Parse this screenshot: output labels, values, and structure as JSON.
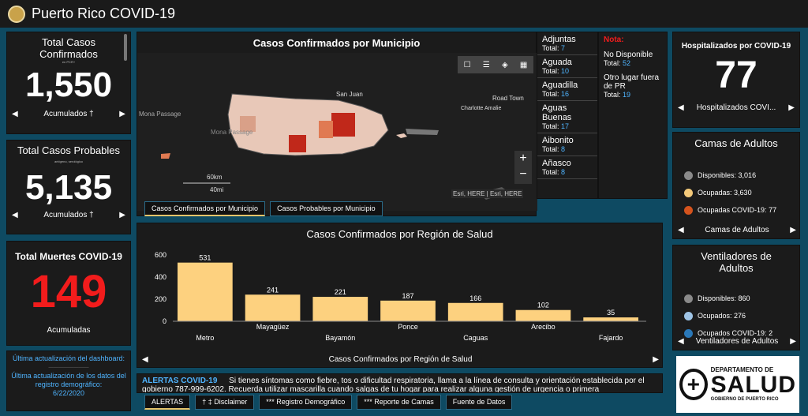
{
  "header": {
    "title": "Puerto Rico COVID-19"
  },
  "total_cases": {
    "title": "Total Casos Confirmados",
    "sub": "en PCR+",
    "value": "1,550",
    "nav": "Acumulados †"
  },
  "probable": {
    "title": "Total Casos Probables",
    "sub": "antígeno, serológico",
    "value": "5,135",
    "nav": "Acumulados †"
  },
  "deaths": {
    "title": "Total Muertes COVID-19",
    "value": "149",
    "nav": "Acumuladas"
  },
  "updates": {
    "line1": "Última actualización del dashboard:",
    "line2": "Última actualización de los datos del registro demográfico:",
    "date": "6/22/2020"
  },
  "map": {
    "title": "Casos Confirmados por Municipio",
    "credit": "Esri, HERE | Esri, HERE",
    "scale_km": "60km",
    "scale_mi": "40mi",
    "labels": {
      "mona": "Mona Passage",
      "mona2": "Mona Passage",
      "road": "Road Town",
      "charlotte": "Charlotte Amalie",
      "san_juan": "San Juan"
    },
    "tabs": [
      "Casos Confirmados por Municipio",
      "Casos Probables por Municipio"
    ],
    "zoom_in": "+",
    "zoom_out": "−"
  },
  "municipios": [
    {
      "name": "Adjuntas",
      "total": "7"
    },
    {
      "name": "Aguada",
      "total": "10"
    },
    {
      "name": "Aguadilla",
      "total": "16"
    },
    {
      "name": "Aguas Buenas",
      "total": "17"
    },
    {
      "name": "Aibonito",
      "total": "8"
    },
    {
      "name": "Añasco",
      "total": "8"
    }
  ],
  "municipio_total_label": "Total:",
  "nota": {
    "title": "Nota:",
    "item1": "No Disponible",
    "total1": "52",
    "item2": "Otro lugar fuera de PR",
    "total2": "19"
  },
  "hosp": {
    "title": "Hospitalizados por COVID-19",
    "value": "77",
    "nav": "Hospitalizados COVI..."
  },
  "camas": {
    "title": "Camas de Adultos",
    "nav": "Camas de Adultos",
    "items": [
      {
        "label": "Disponibles:",
        "value": "3,016",
        "color": "#8a8a8a"
      },
      {
        "label": "Ocupadas:",
        "value": "3,630",
        "color": "#f3c97a"
      },
      {
        "label": "Ocupadas COVID-19:",
        "value": "77",
        "color": "#d4531d"
      }
    ]
  },
  "vent": {
    "title": "Ventiladores de Adultos",
    "nav": "Ventiladores de Adultos",
    "items": [
      {
        "label": "Disponibles:",
        "value": "860",
        "color": "#8a8a8a"
      },
      {
        "label": "Ocupados:",
        "value": "276",
        "color": "#9fc4e6"
      },
      {
        "label": "Ocupados COVID-19:",
        "value": "2",
        "color": "#2a78b8"
      }
    ]
  },
  "chart_data": {
    "type": "bar",
    "title": "Casos Confirmados por Región de Salud",
    "categories": [
      "Metro",
      "Mayagüez",
      "Bayamón",
      "Ponce",
      "Caguas",
      "Arecibo",
      "Fajardo"
    ],
    "values": [
      531,
      241,
      221,
      187,
      166,
      102,
      35
    ],
    "ylim": [
      0,
      600
    ],
    "yticks": [
      0,
      200,
      400,
      600
    ],
    "xlabel": "",
    "ylabel": "",
    "nav": "Casos Confirmados por Región de Salud",
    "bar_color": "#fdd17f"
  },
  "alert": {
    "title": "ALERTAS COVID-19",
    "text": "Si tienes síntomas como fiebre, tos o dificultad respiratoria, llama a la línea de consulta y orientación establecida por el gobierno 787-999-6202. Recuerda utilizar mascarilla cuando salgas de tu hogar para realizar alguna gestión de urgencia o primera"
  },
  "bottom_tabs": [
    "ALERTAS",
    "† ‡ Disclaimer",
    "*** Registro Demográfico",
    "*** Reporte de Camas",
    "Fuente de Datos"
  ],
  "salud": {
    "line1": "DEPARTAMENTO DE",
    "line2": "SALUD",
    "line3": "GOBIERNO DE PUERTO RICO"
  }
}
